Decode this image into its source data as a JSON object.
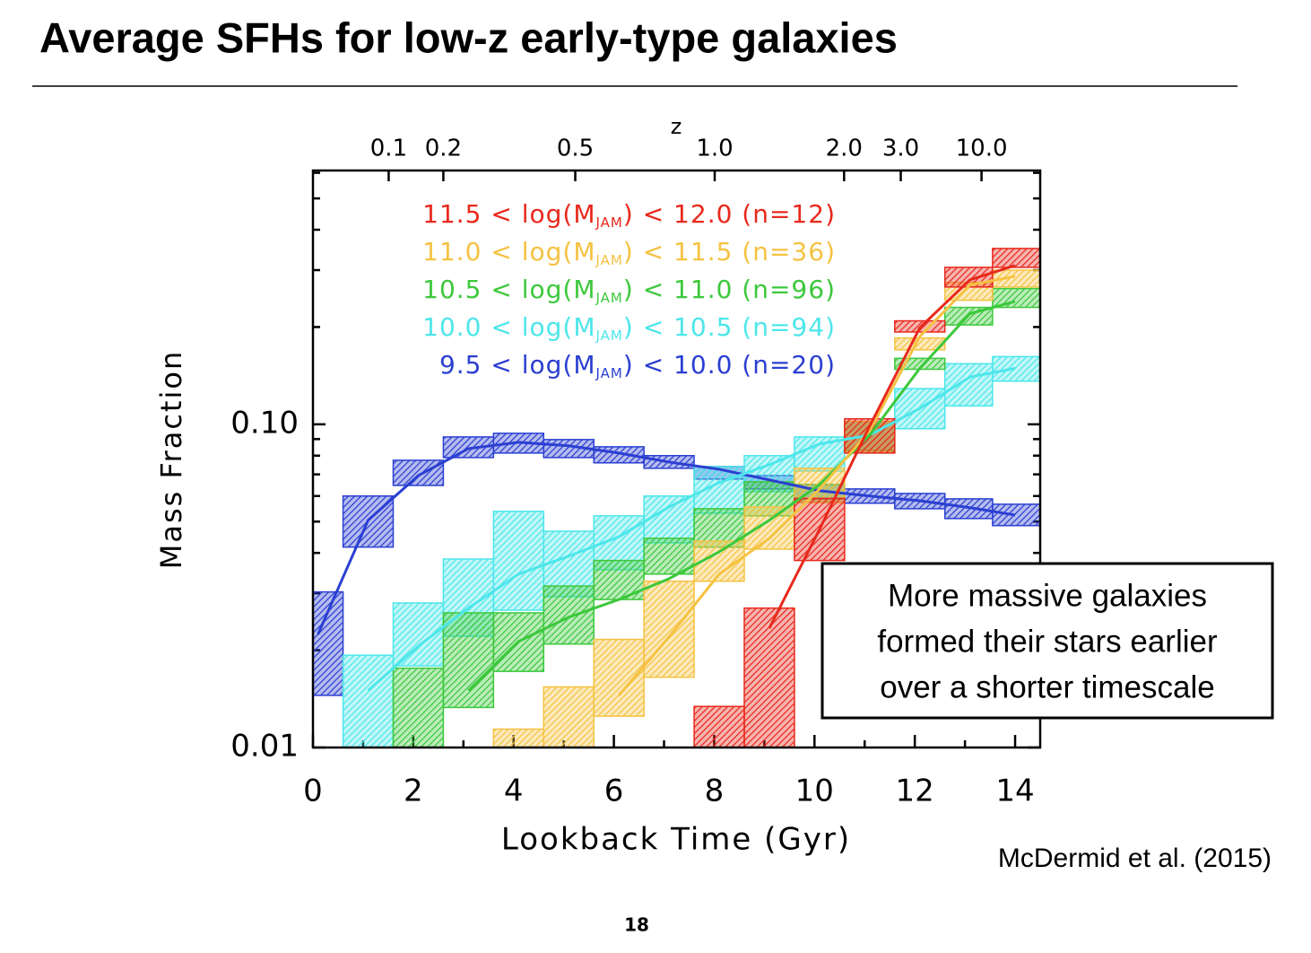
{
  "slide": {
    "title": "Average SFHs for low-z early-type galaxies",
    "page": "18",
    "citation": "McDermid et al. (2015)",
    "note": [
      "More massive galaxies",
      "formed their stars earlier",
      "over a shorter timescale"
    ]
  },
  "chart_data": {
    "type": "line",
    "ylog": true,
    "xlabel": "Lookback Time (Gyr)",
    "ylabel": "Mass Fraction",
    "x2label": "z",
    "xlim": [
      0,
      14.5
    ],
    "ylim": [
      0.01,
      0.61
    ],
    "xticks": [
      0,
      2,
      4,
      6,
      8,
      10,
      12,
      14
    ],
    "xminorticks": [
      1,
      3,
      5,
      7,
      9,
      11,
      13
    ],
    "yticks": [
      0.01,
      {
        "value": 0.1,
        "label": "0.10"
      }
    ],
    "yminorticks": [
      0.02,
      0.03,
      0.04,
      0.05,
      0.06,
      0.07,
      0.08,
      0.09,
      0.2,
      0.3,
      0.4,
      0.5,
      0.6
    ],
    "x2ticks": [
      {
        "value": 1.51,
        "label": "0.1"
      },
      {
        "value": 2.6,
        "label": "0.2"
      },
      {
        "value": 5.23,
        "label": "0.5"
      },
      {
        "value": 8.01,
        "label": "1.0"
      },
      {
        "value": 10.59,
        "label": "2.0"
      },
      {
        "value": 11.72,
        "label": "3.0"
      },
      {
        "value": 13.33,
        "label": "10.0"
      }
    ],
    "x": [
      0.1,
      1.1,
      2.1,
      3.1,
      4.1,
      5.1,
      6.1,
      7.1,
      8.1,
      9.1,
      10.1,
      11.1,
      12.1,
      13.1,
      14.0
    ],
    "series": [
      {
        "name": [
          "11.5 < log(M",
          "JAM",
          ") < 12.0 (n=12)"
        ],
        "color": "#e8291c",
        "values": [
          null,
          null,
          null,
          null,
          null,
          null,
          null,
          null,
          null,
          0.0234,
          0.0473,
          0.0987,
          0.199,
          0.28,
          0.31
        ],
        "lower": [
          null,
          null,
          null,
          null,
          null,
          null,
          null,
          null,
          0.01,
          0.01,
          0.0379,
          0.0815,
          0.193,
          0.266,
          0.306
        ],
        "upper": [
          null,
          null,
          null,
          null,
          null,
          null,
          null,
          null,
          0.0134,
          0.027,
          0.059,
          0.104,
          0.209,
          0.306,
          0.35
        ]
      },
      {
        "name": [
          "11.0 < log(M",
          "JAM",
          ") < 11.5 (n=36)"
        ],
        "color": "#f5c242",
        "values": [
          null,
          null,
          null,
          null,
          null,
          null,
          0.0145,
          0.022,
          0.0344,
          0.0444,
          0.063,
          0.0956,
          0.187,
          0.27,
          0.287
        ],
        "lower": [
          null,
          null,
          null,
          null,
          0.01,
          0.01,
          0.0125,
          0.0165,
          0.0327,
          0.0411,
          0.0573,
          0.0825,
          0.17,
          0.242,
          0.266
        ],
        "upper": [
          null,
          null,
          null,
          null,
          0.0114,
          0.0154,
          0.0216,
          0.0327,
          0.0435,
          0.0555,
          0.0731,
          0.102,
          0.185,
          0.275,
          0.3
        ]
      },
      {
        "name": [
          "10.5 < log(M",
          "JAM",
          ") < 11.0 (n=96)"
        ],
        "color": "#3cc83c",
        "values": [
          null,
          null,
          null,
          0.015,
          0.0213,
          0.0253,
          0.0287,
          0.0333,
          0.0403,
          0.0505,
          0.0651,
          0.0926,
          0.149,
          0.22,
          0.24
        ],
        "lower": [
          null,
          null,
          0.01,
          0.0133,
          0.0172,
          0.0209,
          0.0287,
          0.0344,
          0.0417,
          0.0521,
          0.0573,
          0.0831,
          0.148,
          0.203,
          0.23
        ],
        "upper": [
          null,
          null,
          0.0176,
          0.0261,
          0.0261,
          0.0316,
          0.0379,
          0.0444,
          0.0548,
          0.0664,
          0.0651,
          0.102,
          0.16,
          0.23,
          0.263
        ]
      },
      {
        "name": [
          "10.0 < log(M",
          "JAM",
          ") < 10.5 (n=94)"
        ],
        "color": "#4de6ea",
        "values": [
          null,
          0.015,
          0.0206,
          0.027,
          0.0344,
          0.0391,
          0.0449,
          0.0555,
          0.066,
          0.075,
          0.0869,
          0.0926,
          0.112,
          0.14,
          0.149
        ],
        "lower": [
          null,
          0.01,
          0.0179,
          0.0221,
          0.0266,
          0.0293,
          0.0355,
          0.043,
          0.0531,
          0.0619,
          0.0717,
          0.0815,
          0.0969,
          0.114,
          0.136
        ],
        "upper": [
          null,
          0.0193,
          0.028,
          0.0383,
          0.0538,
          0.0467,
          0.0521,
          0.06,
          0.074,
          0.08,
          0.0914,
          0.102,
          0.129,
          0.154,
          0.162
        ]
      },
      {
        "name": [
          "9.5 < log(M",
          "JAM",
          ") < 10.0 (n=20)"
        ],
        "color": "#2b3fd1",
        "values": [
          0.0224,
          0.0505,
          0.0694,
          0.0841,
          0.088,
          0.0858,
          0.0815,
          0.0764,
          0.0726,
          0.0673,
          0.0623,
          0.06,
          0.058,
          0.0552,
          0.0524
        ],
        "lower": [
          0.0145,
          0.0417,
          0.0647,
          0.0789,
          0.0815,
          0.0789,
          0.076,
          0.0731,
          0.0677,
          0.0631,
          0.0588,
          0.057,
          0.0548,
          0.0511,
          0.0486
        ],
        "upper": [
          0.0303,
          0.06,
          0.0774,
          0.0914,
          0.0938,
          0.0897,
          0.0852,
          0.08,
          0.074,
          0.0694,
          0.0651,
          0.0631,
          0.0611,
          0.0588,
          0.0566
        ]
      }
    ]
  }
}
